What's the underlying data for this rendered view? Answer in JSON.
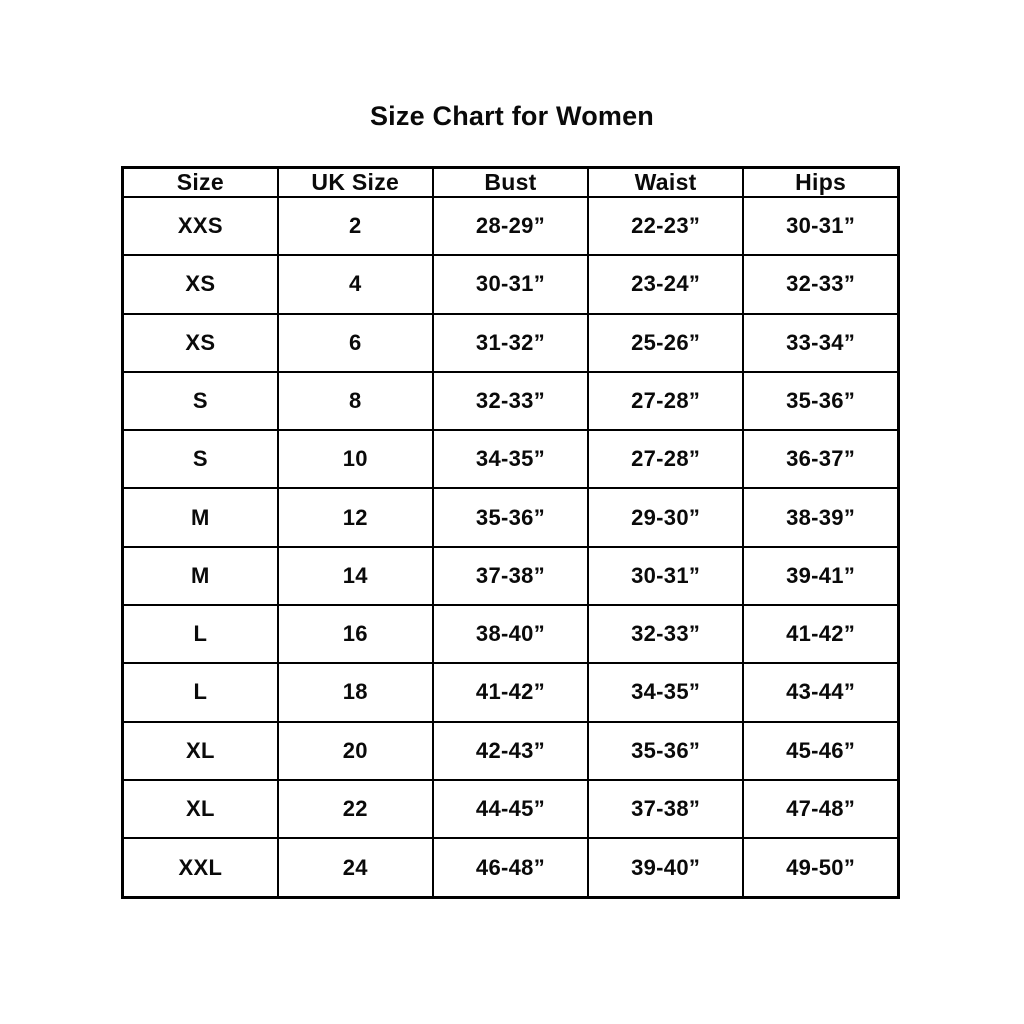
{
  "title": "Size Chart for Women",
  "chart_data": {
    "type": "table",
    "title": "Size Chart for Women",
    "columns": [
      "Size",
      "UK Size",
      "Bust",
      "Waist",
      "Hips"
    ],
    "rows": [
      [
        "XXS",
        "2",
        "28-29”",
        "22-23”",
        "30-31”"
      ],
      [
        "XS",
        "4",
        "30-31”",
        "23-24”",
        "32-33”"
      ],
      [
        "XS",
        "6",
        "31-32”",
        "25-26”",
        "33-34”"
      ],
      [
        "S",
        "8",
        "32-33”",
        "27-28”",
        "35-36”"
      ],
      [
        "S",
        "10",
        "34-35”",
        "27-28”",
        "36-37”"
      ],
      [
        "M",
        "12",
        "35-36”",
        "29-30”",
        "38-39”"
      ],
      [
        "M",
        "14",
        "37-38”",
        "30-31”",
        "39-41”"
      ],
      [
        "L",
        "16",
        "38-40”",
        "32-33”",
        "41-42”"
      ],
      [
        "L",
        "18",
        "41-42”",
        "34-35”",
        "43-44”"
      ],
      [
        "XL",
        "20",
        "42-43”",
        "35-36”",
        "45-46”"
      ],
      [
        "XL",
        "22",
        "44-45”",
        "37-38”",
        "47-48”"
      ],
      [
        "XXL",
        "24",
        "46-48”",
        "39-40”",
        "49-50”"
      ]
    ],
    "layout": {
      "grid": "on",
      "border_color": "#000000",
      "background": "#ffffff",
      "text_color": "#0a0a0a"
    }
  }
}
